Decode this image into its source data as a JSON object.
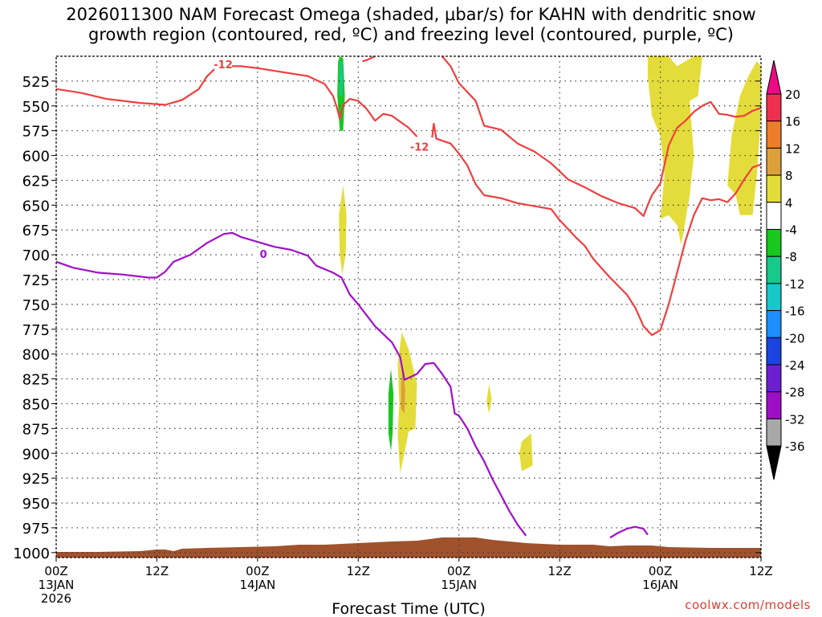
{
  "chart_data": {
    "type": "time-height cross section",
    "title_lines": [
      "2026011300 NAM Forecast Omega (shaded, μbar/s) for KAHN with dendritic snow",
      "growth region (contoured, red, ºC) and freezing level (contoured, purple, ºC)"
    ],
    "xlabel": "Forecast Time (UTC)",
    "x_ticks": [
      {
        "hour": 0,
        "lines": [
          "00Z",
          "13JAN",
          "2026"
        ]
      },
      {
        "hour": 12,
        "lines": [
          "12Z"
        ]
      },
      {
        "hour": 24,
        "lines": [
          "00Z",
          "14JAN"
        ]
      },
      {
        "hour": 36,
        "lines": [
          "12Z"
        ]
      },
      {
        "hour": 48,
        "lines": [
          "00Z",
          "15JAN"
        ]
      },
      {
        "hour": 60,
        "lines": [
          "12Z"
        ]
      },
      {
        "hour": 72,
        "lines": [
          "00Z",
          "16JAN"
        ]
      },
      {
        "hour": 84,
        "lines": [
          "12Z"
        ]
      }
    ],
    "xlim": [
      0,
      84
    ],
    "ylabel_units": "hPa",
    "y_ticks": [
      525,
      550,
      575,
      600,
      625,
      650,
      675,
      700,
      725,
      750,
      775,
      800,
      825,
      850,
      875,
      900,
      925,
      950,
      975,
      1000
    ],
    "ylim": [
      1005,
      500
    ],
    "grid": true,
    "colorbar": {
      "labels": [
        "20",
        "16",
        "12",
        "8",
        "4",
        "-4",
        "-8",
        "-12",
        "-16",
        "-20",
        "-24",
        "-28",
        "-32",
        "-36"
      ],
      "segments": [
        {
          "color": "#ef2f4f"
        },
        {
          "color": "#ee7d2a"
        },
        {
          "color": "#dca03a"
        },
        {
          "color": "#e4dc3a"
        },
        {
          "color": "#ffffff"
        },
        {
          "color": "#18c81e"
        },
        {
          "color": "#17c98a"
        },
        {
          "color": "#18c8c8"
        },
        {
          "color": "#1e8fff"
        },
        {
          "color": "#1b43e0"
        },
        {
          "color": "#6b1fd1"
        },
        {
          "color": "#9b10c7"
        },
        {
          "color": "#a8a8a8"
        }
      ],
      "top_arrow_color": "#ee0a85",
      "bottom_arrow_color": "#000000"
    },
    "contour_labels": [
      {
        "text": "-12",
        "color": "#ef3f3f"
      },
      {
        "text": "-12",
        "color": "#ef3f3f"
      },
      {
        "text": "0",
        "color": "#a10fc9"
      }
    ],
    "series": [
      {
        "name": "dendritic growth region upper (-12C, part 1)",
        "color": "#ef3f3f",
        "points": [
          [
            0,
            533
          ],
          [
            3,
            537
          ],
          [
            6,
            543
          ],
          [
            10,
            547
          ],
          [
            13,
            549
          ],
          [
            15,
            544
          ],
          [
            17,
            533
          ],
          [
            18,
            520
          ],
          [
            19,
            512
          ],
          [
            20,
            510
          ],
          [
            22,
            510
          ],
          [
            24,
            512
          ],
          [
            27,
            516
          ],
          [
            30,
            520
          ],
          [
            32,
            528
          ],
          [
            33,
            540
          ],
          [
            33.5,
            553
          ],
          [
            33.8,
            563
          ],
          [
            34.2,
            549
          ],
          [
            35,
            543
          ],
          [
            36,
            545
          ],
          [
            37,
            553
          ],
          [
            38,
            565
          ],
          [
            39,
            558
          ],
          [
            40,
            560
          ],
          [
            42,
            572
          ],
          [
            43,
            581
          ]
        ]
      },
      {
        "name": "dendritic growth region upper (-12C, part 2)",
        "color": "#ef3f3f",
        "points": [
          [
            36.5,
            505
          ],
          [
            37,
            504
          ],
          [
            38,
            500
          ]
        ]
      },
      {
        "name": "dendritic growth region lower (-12C, part 3)",
        "color": "#ef3f3f",
        "points": [
          [
            44.8,
            582
          ],
          [
            45,
            568
          ],
          [
            45.3,
            583
          ],
          [
            47,
            588
          ],
          [
            48,
            598
          ],
          [
            49,
            610
          ],
          [
            50,
            629
          ],
          [
            51,
            640
          ],
          [
            53,
            643
          ],
          [
            55,
            648
          ],
          [
            57,
            651
          ],
          [
            59,
            654
          ],
          [
            60,
            665
          ],
          [
            62,
            683
          ],
          [
            63,
            691
          ],
          [
            64,
            704
          ],
          [
            66,
            723
          ],
          [
            68,
            740
          ],
          [
            69,
            753
          ],
          [
            70,
            772
          ],
          [
            71,
            781
          ],
          [
            72,
            776
          ],
          [
            73,
            750
          ],
          [
            74,
            718
          ],
          [
            75,
            686
          ],
          [
            76,
            660
          ],
          [
            77,
            643
          ],
          [
            78,
            645
          ],
          [
            79,
            644
          ],
          [
            80,
            647
          ],
          [
            81,
            638
          ],
          [
            82,
            624
          ],
          [
            83,
            612
          ],
          [
            84,
            609
          ]
        ]
      },
      {
        "name": "dendritic growth region (-12C, part 4)",
        "color": "#ef3f3f",
        "points": [
          [
            46,
            500
          ],
          [
            47,
            510
          ],
          [
            48,
            527
          ],
          [
            50,
            545
          ],
          [
            51,
            570
          ],
          [
            53,
            574
          ],
          [
            55,
            588
          ],
          [
            57,
            596
          ],
          [
            59,
            608
          ],
          [
            61,
            624
          ],
          [
            63,
            632
          ],
          [
            65,
            641
          ],
          [
            67,
            648
          ],
          [
            69,
            653
          ],
          [
            70,
            661
          ],
          [
            70.5,
            650
          ],
          [
            71,
            640
          ],
          [
            72,
            628
          ],
          [
            73,
            590
          ],
          [
            74,
            572
          ],
          [
            75,
            565
          ],
          [
            76,
            556
          ],
          [
            77,
            550
          ],
          [
            78,
            546
          ],
          [
            79,
            558
          ],
          [
            80,
            559
          ],
          [
            81,
            561
          ],
          [
            82,
            560
          ],
          [
            83,
            555
          ],
          [
            84,
            552
          ]
        ]
      },
      {
        "name": "freezing level (0C)",
        "color": "#a10fc9",
        "points": [
          [
            0,
            707
          ],
          [
            2,
            713
          ],
          [
            5,
            718
          ],
          [
            8,
            720
          ],
          [
            11,
            723
          ],
          [
            12,
            723
          ],
          [
            13,
            717
          ],
          [
            14,
            707
          ],
          [
            16,
            700
          ],
          [
            18,
            688
          ],
          [
            20,
            679
          ],
          [
            21,
            678
          ],
          [
            22,
            682
          ],
          [
            24,
            687
          ],
          [
            26,
            692
          ],
          [
            28,
            695
          ],
          [
            30,
            701
          ],
          [
            31,
            711
          ],
          [
            33,
            718
          ],
          [
            34,
            723
          ],
          [
            35,
            740
          ],
          [
            36,
            750
          ],
          [
            38,
            772
          ],
          [
            40,
            788
          ],
          [
            41,
            803
          ],
          [
            41.5,
            826
          ],
          [
            43,
            820
          ],
          [
            44,
            810
          ],
          [
            45,
            809
          ],
          [
            46,
            820
          ],
          [
            47,
            833
          ],
          [
            47.5,
            860
          ],
          [
            48,
            862
          ],
          [
            49,
            875
          ],
          [
            50,
            893
          ],
          [
            51,
            908
          ],
          [
            52,
            926
          ],
          [
            53,
            942
          ],
          [
            54,
            958
          ],
          [
            55,
            972
          ],
          [
            56,
            983
          ]
        ]
      },
      {
        "name": "freezing level (0C, small closed)",
        "color": "#a10fc9",
        "points": [
          [
            66,
            985
          ],
          [
            67,
            980
          ],
          [
            68,
            976
          ],
          [
            69,
            974
          ],
          [
            70,
            976
          ],
          [
            70.5,
            982
          ]
        ]
      }
    ],
    "shaded_regions": [
      {
        "omega_bin": "4 to 8",
        "color": "#e4dc3a",
        "polygon": [
          [
            70.5,
            500
          ],
          [
            73,
            500
          ],
          [
            74,
            510
          ],
          [
            76,
            500
          ],
          [
            77,
            500
          ],
          [
            76.5,
            540
          ],
          [
            75.5,
            545
          ],
          [
            76,
            600
          ],
          [
            75.5,
            640
          ],
          [
            75,
            665
          ],
          [
            74.5,
            690
          ],
          [
            74,
            670
          ],
          [
            73,
            660
          ],
          [
            72,
            664
          ],
          [
            72.5,
            620
          ],
          [
            72,
            580
          ],
          [
            71,
            560
          ],
          [
            70.5,
            520
          ]
        ]
      },
      {
        "omega_bin": "4 to 8",
        "color": "#e4dc3a",
        "polygon": [
          [
            83.5,
            505
          ],
          [
            84,
            510
          ],
          [
            84,
            560
          ],
          [
            83.5,
            620
          ],
          [
            83,
            660
          ],
          [
            81.5,
            660
          ],
          [
            81,
            640
          ],
          [
            80,
            630
          ],
          [
            80.5,
            580
          ],
          [
            81.5,
            540
          ],
          [
            82.5,
            520
          ]
        ]
      },
      {
        "omega_bin": "4 to 8",
        "color": "#e4dc3a",
        "polygon": [
          [
            34.2,
            630
          ],
          [
            34.6,
            660
          ],
          [
            34.5,
            700
          ],
          [
            34.1,
            720
          ],
          [
            33.8,
            700
          ],
          [
            33.7,
            660
          ]
        ]
      },
      {
        "omega_bin": "4 to 8",
        "color": "#e4dc3a",
        "polygon": [
          [
            41.2,
            778
          ],
          [
            42,
            795
          ],
          [
            43,
            830
          ],
          [
            42.8,
            875
          ],
          [
            42,
            878
          ],
          [
            41.5,
            900
          ],
          [
            41,
            920
          ],
          [
            40.7,
            880
          ],
          [
            40.9,
            850
          ],
          [
            40.7,
            810
          ]
        ]
      },
      {
        "omega_bin": "8 to 12",
        "color": "#dca03a",
        "polygon": [
          [
            41.3,
            815
          ],
          [
            41.6,
            835
          ],
          [
            41.5,
            860
          ],
          [
            41.1,
            855
          ],
          [
            41.1,
            830
          ]
        ]
      },
      {
        "omega_bin": "4 to 8",
        "color": "#e4dc3a",
        "polygon": [
          [
            51.6,
            830
          ],
          [
            51.9,
            845
          ],
          [
            51.6,
            860
          ],
          [
            51.3,
            848
          ]
        ]
      },
      {
        "omega_bin": "4 to 8",
        "color": "#e4dc3a",
        "polygon": [
          [
            55.5,
            888
          ],
          [
            56.6,
            880
          ],
          [
            56.8,
            912
          ],
          [
            55.5,
            918
          ],
          [
            55.2,
            900
          ]
        ]
      },
      {
        "omega_bin": "-8 to -4",
        "color": "#18c81e",
        "polygon": [
          [
            33.8,
            500
          ],
          [
            34.2,
            502
          ],
          [
            34.4,
            540
          ],
          [
            34.2,
            575
          ],
          [
            33.8,
            575
          ],
          [
            33.5,
            540
          ],
          [
            33.6,
            505
          ]
        ]
      },
      {
        "omega_bin": "-12 to -8",
        "color": "#17c98a",
        "polygon": [
          [
            33.8,
            505
          ],
          [
            34.1,
            505
          ],
          [
            34.2,
            520
          ],
          [
            34.1,
            540
          ],
          [
            33.8,
            540
          ],
          [
            33.7,
            520
          ]
        ]
      },
      {
        "omega_bin": "-8 to -4",
        "color": "#18c81e",
        "polygon": [
          [
            39.9,
            815
          ],
          [
            40.2,
            840
          ],
          [
            40.1,
            880
          ],
          [
            39.9,
            898
          ],
          [
            39.6,
            880
          ],
          [
            39.6,
            840
          ]
        ]
      }
    ],
    "terrain": {
      "color": "#a0522d",
      "label": "surface"
    }
  },
  "source_text": "coolwx.com/models"
}
